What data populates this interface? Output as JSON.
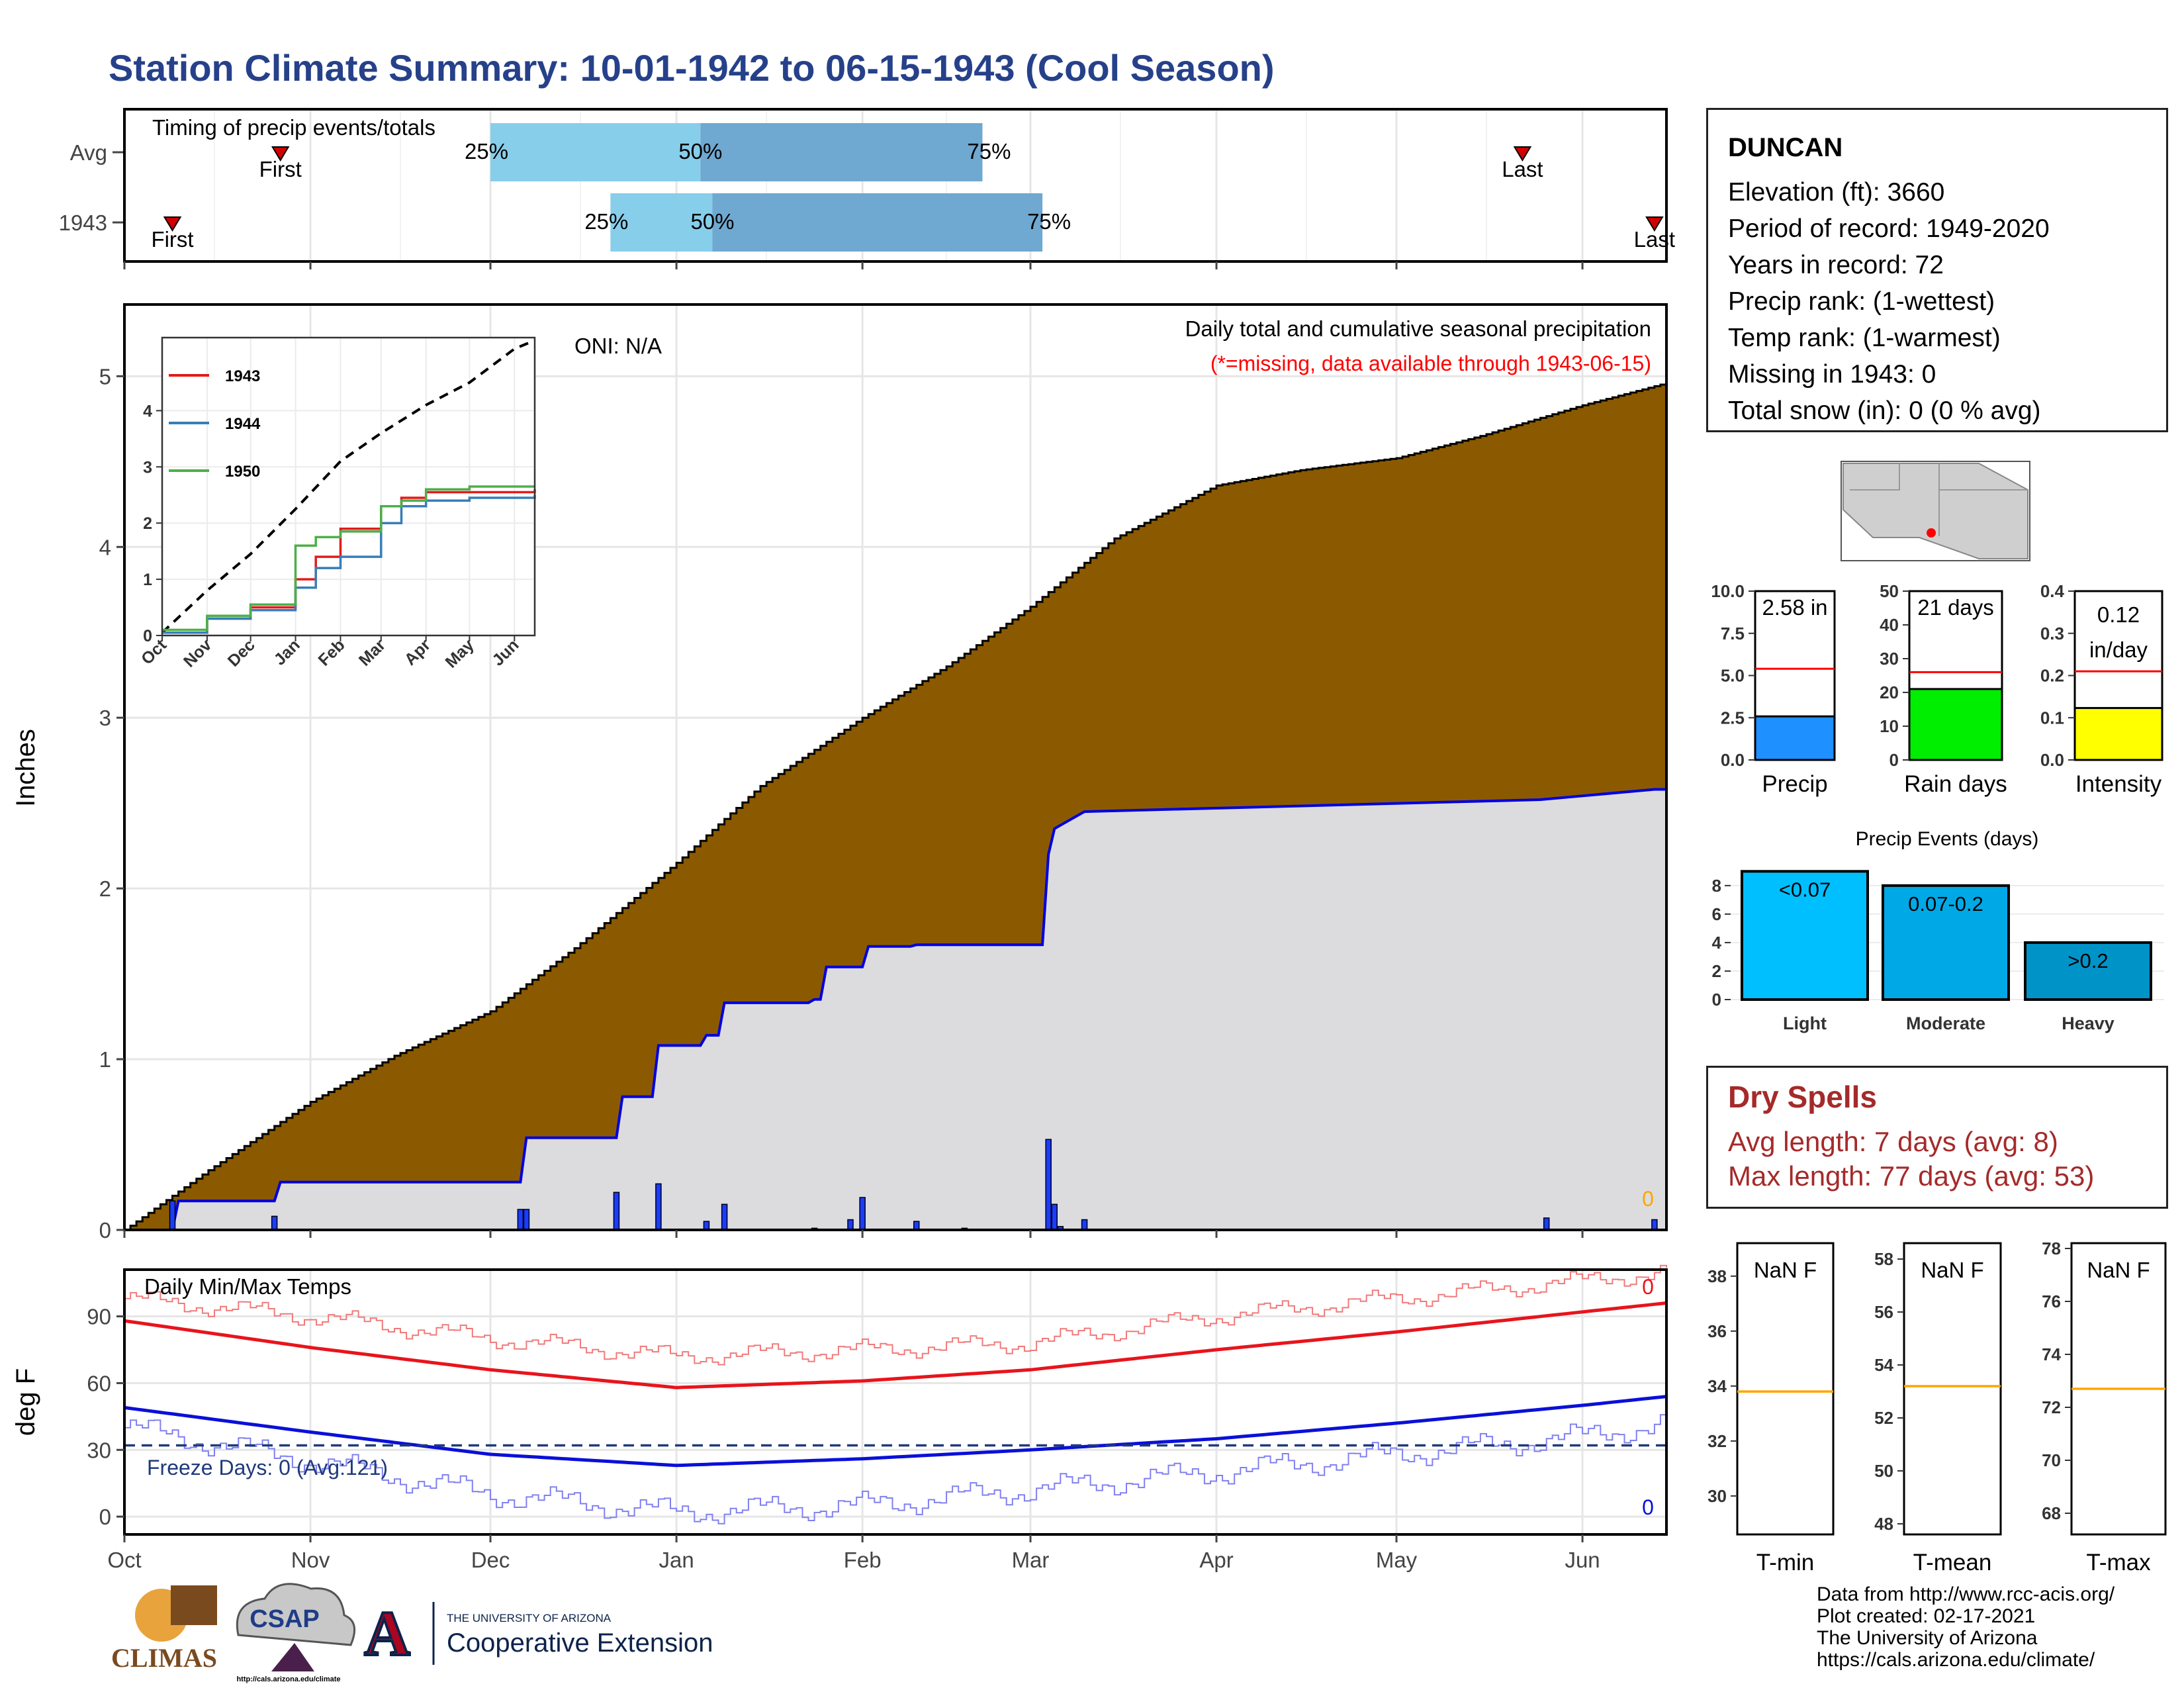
{
  "header": {
    "title": "Station Climate Summary: 10-01-1942 to 06-15-1943 (Cool Season)"
  },
  "station": {
    "name": "DUNCAN",
    "lines": [
      "Elevation (ft): 3660",
      "Period of record: 1949-2020",
      "Years in record: 72",
      "Precip rank:  (1-wettest)",
      "Temp rank:  (1-warmest)",
      "Missing in 1943: 0",
      "Total snow (in): 0 (0 % avg)"
    ]
  },
  "timing": {
    "label": "Timing of precip events/totals",
    "rows": [
      {
        "name": "Avg",
        "first": "First",
        "last": "Last",
        "first_date": "1942-10-27",
        "last_date": "1943-05-22",
        "p25": "1942-12-01",
        "p50": "1943-01-05",
        "p75": "1943-02-21"
      },
      {
        "name": "1943",
        "first": "First",
        "last": "Last",
        "first_date": "1942-10-09",
        "last_date": "1943-06-13",
        "p25": "1942-12-21",
        "p50": "1943-01-07",
        "p75": "1943-03-03"
      }
    ],
    "pct_labels": [
      "25%",
      "50%",
      "75%"
    ],
    "colors": {
      "light": "#87ceeb",
      "dark": "#6fa8d0",
      "marker": "#d00000"
    }
  },
  "month_labels": [
    "Oct",
    "Nov",
    "Dec",
    "Jan",
    "Feb",
    "Mar",
    "Apr",
    "May",
    "Jun"
  ],
  "precip_panel": {
    "ylabel": "Inches",
    "yticks": [
      0,
      1,
      2,
      3,
      4,
      5
    ],
    "oni": "ONI: N/A",
    "desc": "Daily total and cumulative seasonal precipitation",
    "missing_note": "(*=missing, data available through 1943-06-15)",
    "missing_count": "0",
    "colors": {
      "avg_fill": "#8b5a00",
      "obs_fill": "#dcdcde",
      "obs_line": "#0000e0",
      "bars": "#1a3cff",
      "missing": "#ffa500"
    }
  },
  "inset": {
    "legend": [
      {
        "name": "1943",
        "color": "#e41a1c"
      },
      {
        "name": "1944",
        "color": "#377eb8"
      },
      {
        "name": "1950",
        "color": "#4daf4a"
      }
    ],
    "yticks": [
      0,
      1,
      2,
      3,
      4
    ],
    "months": [
      "Oct",
      "Nov",
      "Dec",
      "Jan",
      "Feb",
      "Mar",
      "Apr",
      "May",
      "Jun"
    ]
  },
  "temp_panel": {
    "ylabel": "deg F",
    "label": "Daily Min/Max Temps",
    "yticks": [
      0,
      30,
      60,
      90
    ],
    "freeze": "Freeze Days: 0 (Avg:121)",
    "max_missing": "0",
    "min_missing": "0",
    "colors": {
      "max": "#e8141c",
      "max_obs": "#f07a7a",
      "min": "#0a10d8",
      "min_obs": "#8080f0",
      "freeze": "#1f3a7a"
    }
  },
  "summary_bars": [
    {
      "label": "Precip",
      "value_text": "2.58 in",
      "value": 2.58,
      "avg": 5.4,
      "ymax": 10.0,
      "yticks": [
        "0.0",
        "2.5",
        "5.0",
        "7.5",
        "10.0"
      ],
      "color": "#1e90ff"
    },
    {
      "label": "Rain days",
      "value_text": "21 days",
      "value": 21,
      "avg": 26,
      "ymax": 50,
      "yticks": [
        "0",
        "10",
        "20",
        "30",
        "40",
        "50"
      ],
      "color": "#00ee00"
    },
    {
      "label": "Intensity",
      "value_text": "0.12 in/day",
      "value": 0.123,
      "avg": 0.21,
      "ymax": 0.4,
      "yticks": [
        "0.0",
        "0.1",
        "0.2",
        "0.3",
        "0.4"
      ],
      "color": "#ffff00"
    }
  ],
  "events": {
    "title": "Precip Events (days)",
    "categories": [
      "Light",
      "Moderate",
      "Heavy"
    ],
    "values": [
      9,
      8,
      4
    ],
    "labels": [
      "<0.07",
      "0.07-0.2",
      ">0.2"
    ],
    "yticks": [
      0,
      2,
      4,
      6,
      8
    ],
    "colors": [
      "#00bfff",
      "#00a9e6",
      "#0093c8"
    ]
  },
  "dry_spells": {
    "title": "Dry Spells",
    "avg_length": "Avg length: 7 days (avg: 8)",
    "max_length": "Max length: 77 days (avg: 53)"
  },
  "temp_boxes": [
    {
      "label": "T-min",
      "value": "NaN F",
      "avg": 33.8,
      "yticks": [
        30,
        32,
        34,
        36,
        38
      ]
    },
    {
      "label": "T-mean",
      "value": "NaN F",
      "avg": 53.2,
      "yticks": [
        48,
        50,
        52,
        54,
        56,
        58
      ]
    },
    {
      "label": "T-max",
      "value": "NaN F",
      "avg": 72.7,
      "yticks": [
        68,
        70,
        72,
        74,
        76,
        78
      ]
    }
  ],
  "credits": [
    "Data from http://www.rcc-acis.org/",
    "Plot created: 02-17-2021",
    "The University of Arizona",
    "https://cals.arizona.edu/climate/"
  ],
  "logos": {
    "climas": "CLIMAS",
    "csap": "CSAP",
    "csap_url": "http://cals.arizona.edu/climate",
    "ua_small": "THE UNIVERSITY OF ARIZONA",
    "ua_big": "Cooperative Extension"
  },
  "chart_data": [
    {
      "type": "area",
      "title": "Daily total and cumulative seasonal precipitation",
      "ylabel": "Inches",
      "ylim": [
        0,
        5.4
      ],
      "x_range": [
        "1942-10-01",
        "1943-06-15"
      ],
      "series": [
        {
          "name": "",
          "kind": "average cumulative",
          "x": [
            "1942-10-01",
            "1942-10-15",
            "1942-11-01",
            "1942-11-15",
            "1942-12-01",
            "1942-12-15",
            "1943-01-01",
            "1943-01-15",
            "1943-02-01",
            "1943-02-15",
            "1943-03-01",
            "1943-03-15",
            "1943-04-01",
            "1943-04-15",
            "1943-05-01",
            "1943-05-15",
            "1943-06-01",
            "1943-06-15"
          ],
          "values": [
            0.0,
            0.35,
            0.75,
            1.02,
            1.28,
            1.65,
            2.15,
            2.6,
            3.0,
            3.3,
            3.65,
            4.05,
            4.36,
            4.45,
            4.52,
            4.65,
            4.83,
            4.96
          ]
        },
        {
          "name": "",
          "kind": "observed cumulative",
          "x": [
            "1942-10-01",
            "1942-10-09",
            "1942-10-10",
            "1942-10-26",
            "1942-10-27",
            "1942-12-06",
            "1942-12-07",
            "1942-12-22",
            "1942-12-23",
            "1942-12-28",
            "1942-12-29",
            "1943-01-05",
            "1943-01-06",
            "1943-01-08",
            "1943-01-09",
            "1943-01-23",
            "1943-01-24",
            "1943-01-25",
            "1943-01-26",
            "1943-02-01",
            "1943-02-02",
            "1943-02-09",
            "1943-02-10",
            "1943-03-03",
            "1943-03-04",
            "1943-03-05",
            "1943-03-06",
            "1943-03-10",
            "1943-05-25",
            "1943-06-13",
            "1943-06-15"
          ],
          "values": [
            0,
            0,
            0.17,
            0.17,
            0.28,
            0.28,
            0.54,
            0.54,
            0.78,
            0.78,
            1.08,
            1.08,
            1.14,
            1.14,
            1.33,
            1.33,
            1.35,
            1.35,
            1.54,
            1.54,
            1.66,
            1.66,
            1.67,
            1.67,
            2.2,
            2.35,
            2.37,
            2.45,
            2.52,
            2.58,
            2.58
          ]
        },
        {
          "name": "",
          "kind": "daily precip",
          "x": [
            "1942-10-09",
            "1942-10-26",
            "1942-12-06",
            "1942-12-07",
            "1942-12-22",
            "1942-12-29",
            "1943-01-06",
            "1943-01-09",
            "1943-01-24",
            "1943-01-30",
            "1943-02-01",
            "1943-02-10",
            "1943-02-18",
            "1943-03-04",
            "1943-03-05",
            "1943-03-06",
            "1943-03-10",
            "1943-05-26",
            "1943-06-13"
          ],
          "values": [
            0.17,
            0.08,
            0.12,
            0.12,
            0.22,
            0.27,
            0.05,
            0.15,
            0.01,
            0.06,
            0.19,
            0.05,
            0.01,
            0.53,
            0.15,
            0.02,
            0.06,
            0.07,
            0.06
          ]
        }
      ]
    },
    {
      "type": "line",
      "title": "",
      "ylim": [
        0,
        5.3
      ],
      "series": [
        {
          "name": "",
          "kind": "dashed cumulative",
          "x": [
            "1942-10-01",
            "1942-11-01",
            "1942-12-01",
            "1943-01-01",
            "1943-02-01",
            "1943-03-01",
            "1943-04-01",
            "1943-05-01",
            "1943-06-01",
            "1943-06-15"
          ],
          "values": [
            0.05,
            0.8,
            1.45,
            2.25,
            3.1,
            3.6,
            4.1,
            4.5,
            5.1,
            5.25
          ]
        },
        {
          "name": "1943",
          "x": [
            "1942-10-01",
            "1942-11-01",
            "1942-12-01",
            "1943-01-01",
            "1943-01-15",
            "1943-02-01",
            "1943-03-01",
            "1943-03-15",
            "1943-04-01",
            "1943-05-01",
            "1943-06-15"
          ],
          "values": [
            0.05,
            0.3,
            0.5,
            1.0,
            1.4,
            1.9,
            2.3,
            2.45,
            2.55,
            2.55,
            2.6
          ]
        },
        {
          "name": "1944",
          "x": [
            "1942-10-01",
            "1942-11-01",
            "1942-12-01",
            "1943-01-01",
            "1943-01-15",
            "1943-02-01",
            "1943-03-01",
            "1943-03-15",
            "1943-04-01",
            "1943-05-01",
            "1943-06-15"
          ],
          "values": [
            0.05,
            0.3,
            0.45,
            0.85,
            1.2,
            1.4,
            2.0,
            2.3,
            2.4,
            2.45,
            2.5
          ]
        },
        {
          "name": "1950",
          "x": [
            "1942-10-01",
            "1942-11-01",
            "1942-12-01",
            "1943-01-01",
            "1943-01-15",
            "1943-02-01",
            "1943-03-01",
            "1943-03-15",
            "1943-04-01",
            "1943-05-01",
            "1943-06-15"
          ],
          "values": [
            0.1,
            0.35,
            0.55,
            1.6,
            1.75,
            1.85,
            2.3,
            2.4,
            2.6,
            2.65,
            2.65
          ]
        }
      ],
      "yticks": [
        0,
        1,
        2,
        3,
        4
      ]
    },
    {
      "type": "line",
      "title": "Daily Min/Max Temps",
      "ylabel": "deg F",
      "ylim": [
        -8,
        111
      ],
      "series": [
        {
          "name": "",
          "kind": "avg max",
          "x": [
            "1942-10-01",
            "1942-11-01",
            "1942-12-01",
            "1943-01-01",
            "1943-02-01",
            "1943-03-01",
            "1943-04-01",
            "1943-05-01",
            "1943-06-01",
            "1943-06-15"
          ],
          "values": [
            88,
            76,
            66,
            58,
            61,
            66,
            75,
            83,
            92,
            96
          ]
        },
        {
          "name": "",
          "kind": "avg min",
          "x": [
            "1942-10-01",
            "1942-11-01",
            "1942-12-01",
            "1943-01-01",
            "1943-02-01",
            "1943-03-01",
            "1943-04-01",
            "1943-05-01",
            "1943-06-01",
            "1943-06-15"
          ],
          "values": [
            49,
            38,
            28,
            23,
            26,
            30,
            35,
            42,
            50,
            54
          ]
        },
        {
          "name": "",
          "kind": "max obs",
          "x": [
            "1942-10-01",
            "1942-11-01",
            "1942-12-01",
            "1943-01-01",
            "1943-02-01",
            "1943-03-01",
            "1943-04-01",
            "1943-05-01",
            "1943-06-01",
            "1943-06-15"
          ],
          "values": [
            98,
            90,
            80,
            72,
            75,
            78,
            90,
            98,
            106,
            110
          ]
        },
        {
          "name": "",
          "kind": "min obs",
          "x": [
            "1942-10-01",
            "1942-11-01",
            "1942-12-01",
            "1943-01-01",
            "1943-02-01",
            "1943-03-01",
            "1943-04-01",
            "1943-05-01",
            "1943-06-01",
            "1943-06-15"
          ],
          "values": [
            40,
            25,
            10,
            2,
            5,
            12,
            20,
            28,
            36,
            42
          ]
        }
      ],
      "freeze_line": 32,
      "yticks": [
        0,
        30,
        60,
        90
      ]
    },
    {
      "type": "bar",
      "title": "Precip Events (days)",
      "categories": [
        "Light",
        "Moderate",
        "Heavy"
      ],
      "values": [
        9,
        8,
        4
      ],
      "ylim": [
        0,
        9.2
      ]
    }
  ]
}
